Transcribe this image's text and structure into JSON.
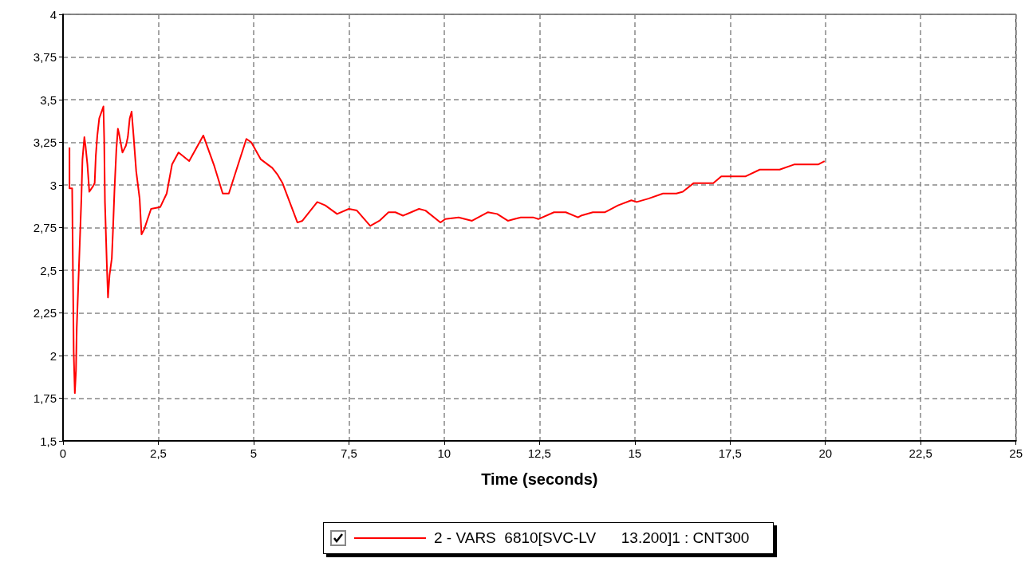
{
  "chart_data": {
    "type": "line",
    "xlabel": "Time (seconds)",
    "legend": "bottom",
    "grid": true,
    "marker": "none",
    "line_style": "solid",
    "xlim": [
      0,
      25
    ],
    "xticks": [
      0,
      {
        "value": 2.5,
        "label": "2,5"
      },
      5,
      {
        "value": 7.5,
        "label": "7,5"
      },
      10,
      {
        "value": 12.5,
        "label": "12,5"
      },
      15,
      {
        "value": 17.5,
        "label": "17,5"
      },
      20,
      {
        "value": 22.5,
        "label": "22,5"
      },
      25
    ],
    "ylim": [
      1.5,
      4
    ],
    "yticks": [
      {
        "value": 1.5,
        "label": "1,5"
      },
      {
        "value": 1.75,
        "label": "1,75"
      },
      2,
      {
        "value": 2.25,
        "label": "2,25"
      },
      {
        "value": 2.5,
        "label": "2,5"
      },
      {
        "value": 2.75,
        "label": "2,75"
      },
      3,
      {
        "value": 3.25,
        "label": "3,25"
      },
      {
        "value": 3.5,
        "label": "3,5"
      },
      {
        "value": 3.75,
        "label": "3,75"
      },
      4
    ],
    "series": [
      {
        "name": "2 - VARS  6810[SVC-LV      13.200]1 : CNT300",
        "color": "#ff0000",
        "x": [
          0.17,
          0.17,
          0.24,
          0.26,
          0.28,
          0.31,
          0.34,
          0.36,
          0.4,
          0.44,
          0.48,
          0.51,
          0.56,
          0.59,
          0.64,
          0.69,
          0.78,
          0.83,
          0.86,
          0.9,
          0.95,
          1.06,
          1.08,
          1.1,
          1.15,
          1.18,
          1.22,
          1.28,
          1.31,
          1.35,
          1.4,
          1.44,
          1.47,
          1.56,
          1.65,
          1.7,
          1.75,
          1.8,
          1.85,
          1.92,
          2.01,
          2.06,
          2.13,
          2.22,
          2.31,
          2.55,
          2.72,
          2.86,
          3.03,
          3.31,
          3.68,
          3.97,
          4.19,
          4.35,
          4.81,
          4.94,
          5.19,
          5.49,
          5.63,
          5.76,
          6.15,
          6.28,
          6.67,
          6.88,
          7.19,
          7.5,
          7.71,
          8.06,
          8.3,
          8.54,
          8.72,
          8.92,
          9.34,
          9.51,
          9.9,
          10.03,
          10.38,
          10.73,
          11.15,
          11.39,
          11.67,
          11.84,
          12.01,
          12.33,
          12.47,
          12.88,
          13.19,
          13.51,
          13.59,
          13.9,
          14.22,
          14.56,
          14.91,
          15.05,
          15.36,
          15.74,
          16.09,
          16.26,
          16.54,
          17.06,
          17.27,
          17.9,
          18.28,
          18.59,
          18.8,
          19.18,
          19.81,
          19.98
        ],
        "values": [
          3.22,
          2.98,
          2.98,
          2.5,
          2.02,
          1.78,
          1.91,
          2.16,
          2.41,
          2.66,
          2.91,
          3.15,
          3.28,
          3.23,
          3.12,
          2.96,
          2.99,
          3.01,
          3.17,
          3.29,
          3.39,
          3.46,
          3.27,
          2.9,
          2.53,
          2.34,
          2.47,
          2.57,
          2.73,
          2.97,
          3.21,
          3.33,
          3.3,
          3.19,
          3.23,
          3.28,
          3.39,
          3.43,
          3.29,
          3.08,
          2.92,
          2.71,
          2.74,
          2.8,
          2.86,
          2.87,
          2.95,
          3.12,
          3.19,
          3.14,
          3.29,
          3.11,
          2.95,
          2.95,
          3.27,
          3.25,
          3.15,
          3.1,
          3.06,
          3.01,
          2.78,
          2.79,
          2.9,
          2.88,
          2.83,
          2.86,
          2.85,
          2.76,
          2.79,
          2.84,
          2.84,
          2.82,
          2.86,
          2.85,
          2.78,
          2.8,
          2.81,
          2.79,
          2.84,
          2.83,
          2.79,
          2.8,
          2.81,
          2.81,
          2.8,
          2.84,
          2.84,
          2.81,
          2.82,
          2.84,
          2.84,
          2.88,
          2.91,
          2.9,
          2.92,
          2.95,
          2.95,
          2.96,
          3.01,
          3.01,
          3.05,
          3.05,
          3.09,
          3.09,
          3.09,
          3.12,
          3.12,
          3.14
        ]
      }
    ]
  }
}
